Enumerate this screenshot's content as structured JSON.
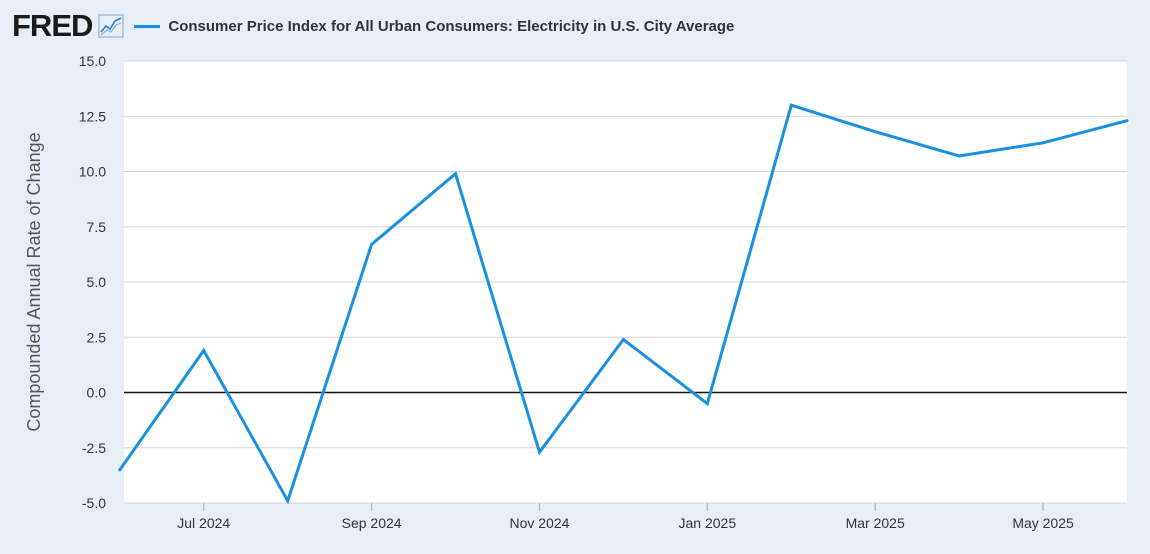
{
  "header": {
    "logo_text": "FRED",
    "logo_icon": "line-graph-icon"
  },
  "chart_data": {
    "type": "line",
    "title": "Consumer Price Index for All Urban Consumers: Electricity in U.S. City Average",
    "ylabel": "Compounded Annual Rate of Change",
    "xlabel": "",
    "ylim": [
      -5.0,
      15.0
    ],
    "yticks": [
      -5.0,
      -2.5,
      0.0,
      2.5,
      5.0,
      7.5,
      10.0,
      12.5,
      15.0
    ],
    "ytick_labels": [
      "-5.0",
      "-2.5",
      "0.0",
      "2.5",
      "5.0",
      "7.5",
      "10.0",
      "12.5",
      "15.0"
    ],
    "xtick_labels": [
      "Jul 2024",
      "Sep 2024",
      "Nov 2024",
      "Jan 2025",
      "Mar 2025",
      "May 2025"
    ],
    "xtick_index": [
      1,
      3,
      5,
      7,
      9,
      11
    ],
    "x": [
      "Jun 2024",
      "Jul 2024",
      "Aug 2024",
      "Sep 2024",
      "Oct 2024",
      "Nov 2024",
      "Dec 2024",
      "Jan 2025",
      "Feb 2025",
      "Mar 2025",
      "Apr 2025",
      "May 2025",
      "Jun 2025"
    ],
    "x_index_range": [
      0.05,
      12.0
    ],
    "series": [
      {
        "name": "Consumer Price Index for All Urban Consumers: Electricity in U.S. City Average",
        "color": "#1b8fe0",
        "values": [
          -3.5,
          1.9,
          -4.9,
          6.7,
          9.9,
          -2.7,
          2.4,
          -0.5,
          13.0,
          11.8,
          10.7,
          11.3,
          12.3
        ]
      }
    ],
    "zero_line": true,
    "grid": true,
    "legend": "top-left"
  }
}
